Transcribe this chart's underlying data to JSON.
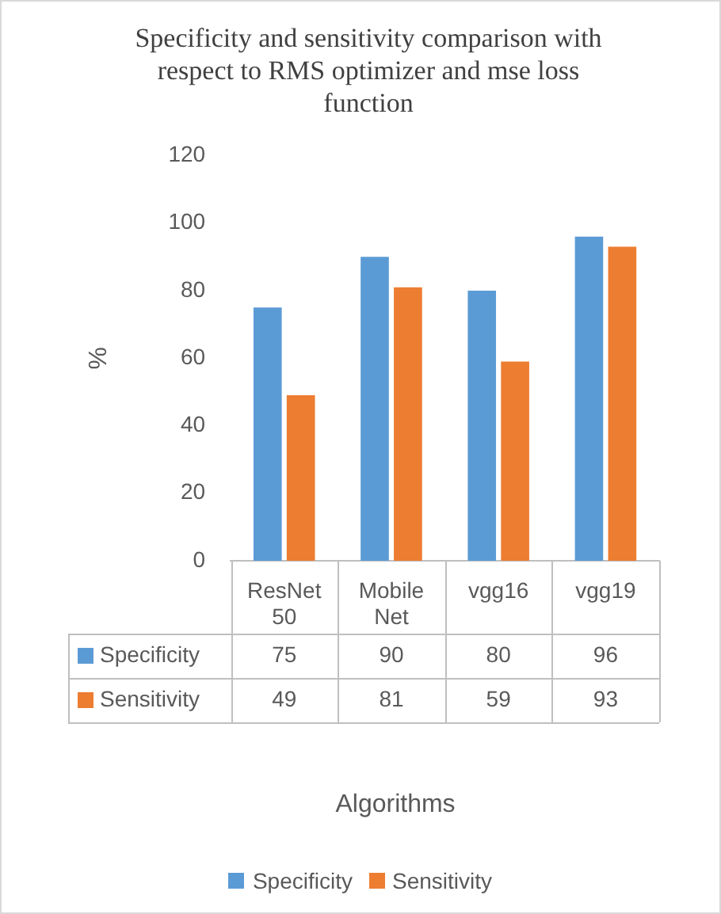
{
  "chart_data": {
    "type": "bar",
    "title": "Specificity and sensitivity comparison with respect to RMS optimizer and mse loss function",
    "ylabel": "%",
    "annotations": [
      "Algorithms"
    ],
    "categories": [
      "ResNet 50",
      "Mobile Net",
      "vgg16",
      "vgg19"
    ],
    "series": [
      {
        "name": "Specificity",
        "color": "#5b9bd5",
        "values": [
          75,
          90,
          80,
          96
        ]
      },
      {
        "name": "Sensitivity",
        "color": "#ed7d31",
        "values": [
          49,
          81,
          59,
          93
        ]
      }
    ],
    "ylim": [
      0,
      120
    ],
    "yticks": [
      0,
      20,
      40,
      60,
      80,
      100,
      120
    ],
    "grid": false,
    "legend": "bottom",
    "data_labels": true
  }
}
